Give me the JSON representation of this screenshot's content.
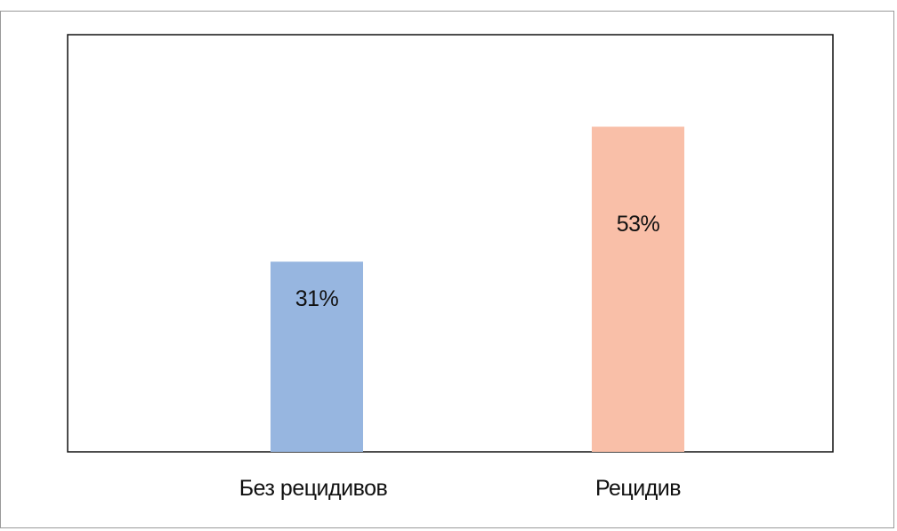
{
  "chart_data": {
    "type": "bar",
    "categories": [
      "Без рецидивов",
      "Рецидив"
    ],
    "values": [
      31,
      53
    ],
    "value_labels": [
      "31%",
      "53%"
    ],
    "colors": [
      "#97b6e0",
      "#f9bfa8"
    ],
    "ylim": [
      0,
      68
    ],
    "grid": false,
    "legend": "none",
    "title": "",
    "xlabel": "",
    "ylabel": ""
  }
}
